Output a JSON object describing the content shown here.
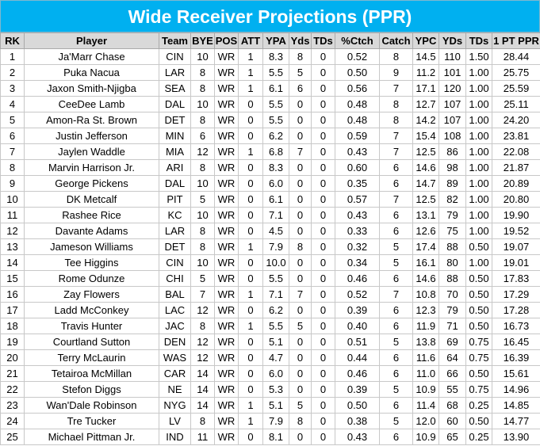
{
  "header": {
    "title": "Wide Receiver Projections (PPR)"
  },
  "table": {
    "columns": [
      "RK",
      "Player",
      "Team",
      "BYE",
      "POS",
      "ATT",
      "YPA",
      "Yds",
      "TDs",
      "%Ctch",
      "Catch",
      "YPC",
      "YDs",
      "TDs",
      "1 PT PPR"
    ],
    "rows": [
      [
        "1",
        "Ja'Marr Chase",
        "CIN",
        "10",
        "WR",
        "1",
        "8.3",
        "8",
        "0",
        "0.52",
        "8",
        "14.5",
        "110",
        "1.50",
        "28.44"
      ],
      [
        "2",
        "Puka Nacua",
        "LAR",
        "8",
        "WR",
        "1",
        "5.5",
        "5",
        "0",
        "0.50",
        "9",
        "11.2",
        "101",
        "1.00",
        "25.75"
      ],
      [
        "3",
        "Jaxon Smith-Njigba",
        "SEA",
        "8",
        "WR",
        "1",
        "6.1",
        "6",
        "0",
        "0.56",
        "7",
        "17.1",
        "120",
        "1.00",
        "25.59"
      ],
      [
        "4",
        "CeeDee Lamb",
        "DAL",
        "10",
        "WR",
        "0",
        "5.5",
        "0",
        "0",
        "0.48",
        "8",
        "12.7",
        "107",
        "1.00",
        "25.11"
      ],
      [
        "5",
        "Amon-Ra St. Brown",
        "DET",
        "8",
        "WR",
        "0",
        "5.5",
        "0",
        "0",
        "0.48",
        "8",
        "14.2",
        "107",
        "1.00",
        "24.20"
      ],
      [
        "6",
        "Justin Jefferson",
        "MIN",
        "6",
        "WR",
        "0",
        "6.2",
        "0",
        "0",
        "0.59",
        "7",
        "15.4",
        "108",
        "1.00",
        "23.81"
      ],
      [
        "7",
        "Jaylen Waddle",
        "MIA",
        "12",
        "WR",
        "1",
        "6.8",
        "7",
        "0",
        "0.43",
        "7",
        "12.5",
        "86",
        "1.00",
        "22.08"
      ],
      [
        "8",
        "Marvin Harrison Jr.",
        "ARI",
        "8",
        "WR",
        "0",
        "8.3",
        "0",
        "0",
        "0.60",
        "6",
        "14.6",
        "98",
        "1.00",
        "21.87"
      ],
      [
        "9",
        "George Pickens",
        "DAL",
        "10",
        "WR",
        "0",
        "6.0",
        "0",
        "0",
        "0.35",
        "6",
        "14.7",
        "89",
        "1.00",
        "20.89"
      ],
      [
        "10",
        "DK Metcalf",
        "PIT",
        "5",
        "WR",
        "0",
        "6.1",
        "0",
        "0",
        "0.57",
        "7",
        "12.5",
        "82",
        "1.00",
        "20.80"
      ],
      [
        "11",
        "Rashee Rice",
        "KC",
        "10",
        "WR",
        "0",
        "7.1",
        "0",
        "0",
        "0.43",
        "6",
        "13.1",
        "79",
        "1.00",
        "19.90"
      ],
      [
        "12",
        "Davante Adams",
        "LAR",
        "8",
        "WR",
        "0",
        "4.5",
        "0",
        "0",
        "0.33",
        "6",
        "12.6",
        "75",
        "1.00",
        "19.52"
      ],
      [
        "13",
        "Jameson Williams",
        "DET",
        "8",
        "WR",
        "1",
        "7.9",
        "8",
        "0",
        "0.32",
        "5",
        "17.4",
        "88",
        "0.50",
        "19.07"
      ],
      [
        "14",
        "Tee Higgins",
        "CIN",
        "10",
        "WR",
        "0",
        "10.0",
        "0",
        "0",
        "0.34",
        "5",
        "16.1",
        "80",
        "1.00",
        "19.01"
      ],
      [
        "15",
        "Rome Odunze",
        "CHI",
        "5",
        "WR",
        "0",
        "5.5",
        "0",
        "0",
        "0.46",
        "6",
        "14.6",
        "88",
        "0.50",
        "17.83"
      ],
      [
        "16",
        "Zay Flowers",
        "BAL",
        "7",
        "WR",
        "1",
        "7.1",
        "7",
        "0",
        "0.52",
        "7",
        "10.8",
        "70",
        "0.50",
        "17.29"
      ],
      [
        "17",
        "Ladd McConkey",
        "LAC",
        "12",
        "WR",
        "0",
        "6.2",
        "0",
        "0",
        "0.39",
        "6",
        "12.3",
        "79",
        "0.50",
        "17.28"
      ],
      [
        "18",
        "Travis Hunter",
        "JAC",
        "8",
        "WR",
        "1",
        "5.5",
        "5",
        "0",
        "0.40",
        "6",
        "11.9",
        "71",
        "0.50",
        "16.73"
      ],
      [
        "19",
        "Courtland Sutton",
        "DEN",
        "12",
        "WR",
        "0",
        "5.1",
        "0",
        "0",
        "0.51",
        "5",
        "13.8",
        "69",
        "0.75",
        "16.45"
      ],
      [
        "20",
        "Terry McLaurin",
        "WAS",
        "12",
        "WR",
        "0",
        "4.7",
        "0",
        "0",
        "0.44",
        "6",
        "11.6",
        "64",
        "0.75",
        "16.39"
      ],
      [
        "21",
        "Tetairoa McMillan",
        "CAR",
        "14",
        "WR",
        "0",
        "6.0",
        "0",
        "0",
        "0.46",
        "6",
        "11.0",
        "66",
        "0.50",
        "15.61"
      ],
      [
        "22",
        "Stefon Diggs",
        "NE",
        "14",
        "WR",
        "0",
        "5.3",
        "0",
        "0",
        "0.39",
        "5",
        "10.9",
        "55",
        "0.75",
        "14.96"
      ],
      [
        "23",
        "Wan'Dale Robinson",
        "NYG",
        "14",
        "WR",
        "1",
        "5.1",
        "5",
        "0",
        "0.50",
        "6",
        "11.4",
        "68",
        "0.25",
        "14.85"
      ],
      [
        "24",
        "Tre Tucker",
        "LV",
        "8",
        "WR",
        "1",
        "7.9",
        "8",
        "0",
        "0.38",
        "5",
        "12.0",
        "60",
        "0.50",
        "14.77"
      ],
      [
        "25",
        "Michael Pittman Jr.",
        "IND",
        "11",
        "WR",
        "0",
        "8.1",
        "0",
        "0",
        "0.43",
        "6",
        "10.9",
        "65",
        "0.25",
        "13.90"
      ]
    ]
  }
}
